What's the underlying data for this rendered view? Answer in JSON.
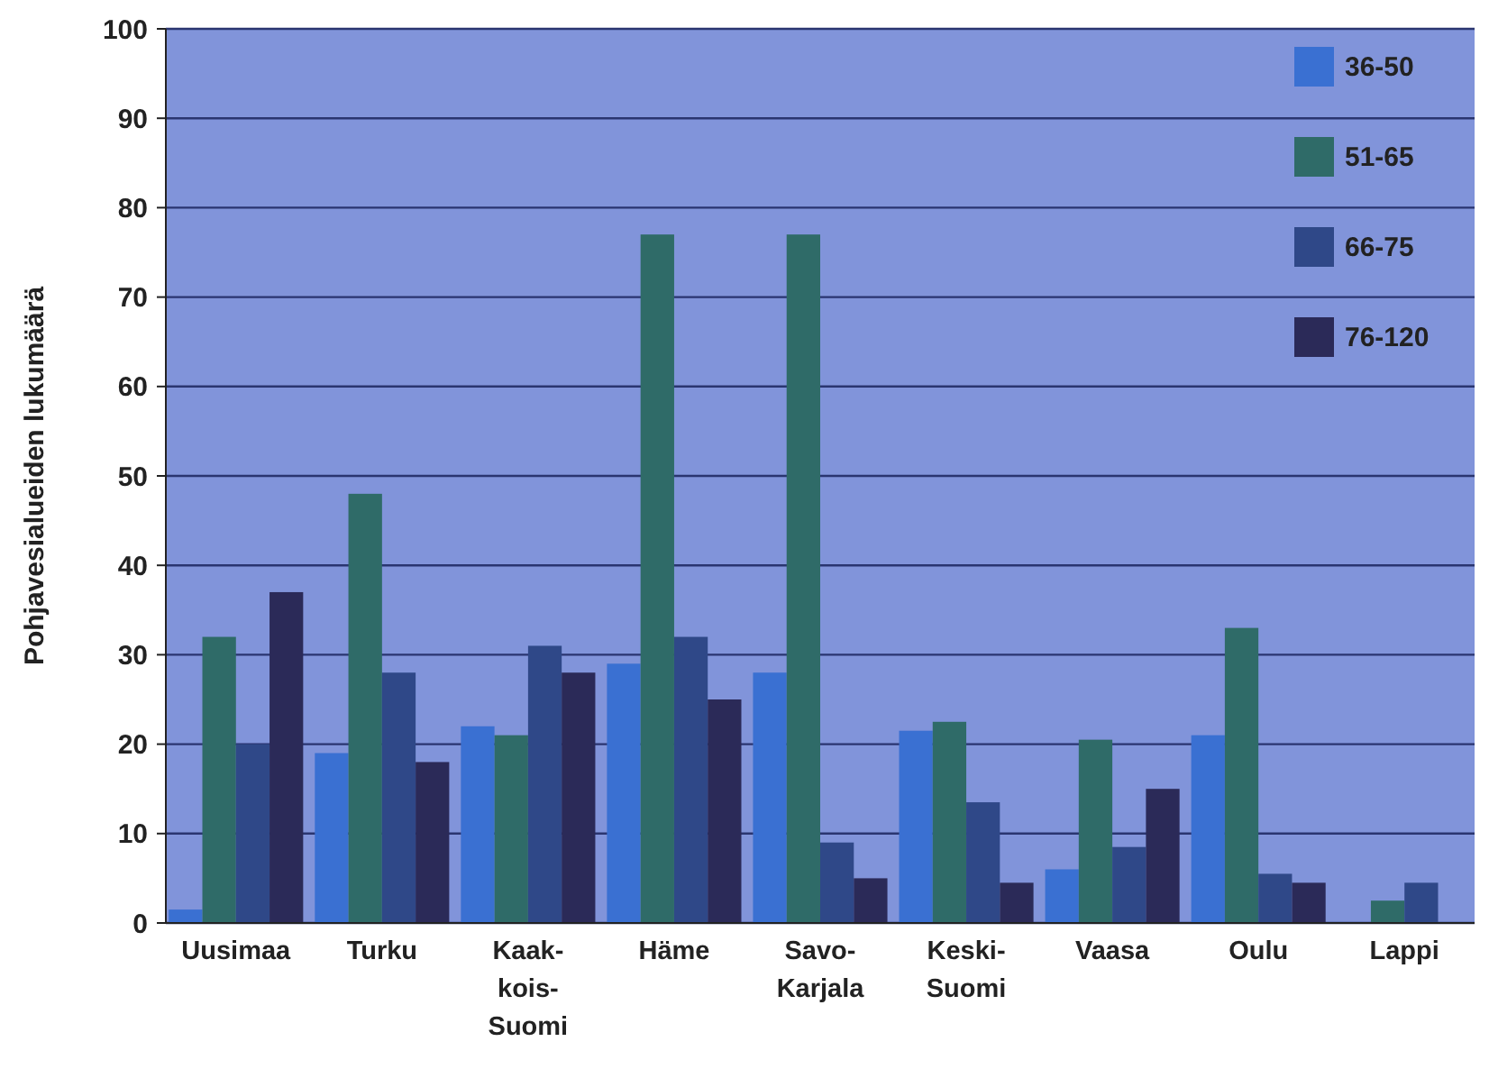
{
  "chart_data": {
    "type": "bar",
    "ylabel": "Pohjavesialueiden lukumäärä",
    "categories": [
      "Uusimaa",
      "Turku",
      "Kaak-\nkois-\nSuomi",
      "Häme",
      "Savo-\nKarjala",
      "Keski-\nSuomi",
      "Vaasa",
      "Oulu",
      "Lappi"
    ],
    "series": [
      {
        "name": "36-50",
        "color": "#3a70d2",
        "values": [
          1.5,
          19,
          22,
          29,
          28,
          21.5,
          6,
          21,
          null
        ]
      },
      {
        "name": "51-65",
        "color": "#2f6b68",
        "values": [
          32,
          48,
          21,
          77,
          77,
          22.5,
          20.5,
          33,
          2.5
        ]
      },
      {
        "name": "66-75",
        "color": "#2f4888",
        "values": [
          20,
          28,
          31,
          32,
          9,
          13.5,
          8.5,
          5.5,
          4.5
        ]
      },
      {
        "name": "76-120",
        "color": "#2b2a58",
        "values": [
          37,
          18,
          28,
          25,
          5,
          4.5,
          15,
          4.5,
          null
        ]
      }
    ],
    "ylim": [
      0,
      100
    ],
    "yticks": [
      0,
      10,
      20,
      30,
      40,
      50,
      60,
      70,
      80,
      90,
      100
    ],
    "grid": "y",
    "legend": "top right"
  }
}
